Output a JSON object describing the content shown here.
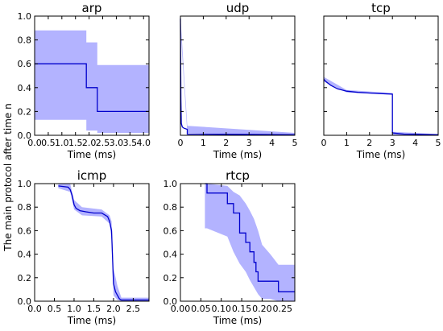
{
  "figure": {
    "ylabel": "The main protocol after time n"
  },
  "colors": {
    "line": "#0000cc",
    "band": "#b3b3ff"
  },
  "chart_data": [
    {
      "type": "line",
      "title": "arp",
      "xlabel": "Time (ms)",
      "xlim": [
        0,
        4.2
      ],
      "ylim": [
        0,
        1.0
      ],
      "xticks": [
        "0.0",
        "0.5",
        "1.0",
        "1.5",
        "2.0",
        "2.5",
        "3.0",
        "3.5",
        "4.0"
      ],
      "yticks": [
        "0.0",
        "0.2",
        "0.4",
        "0.6",
        "0.8",
        "1.0"
      ],
      "x": [
        0,
        1.9,
        1.9,
        2.3,
        2.3,
        4.2
      ],
      "y": [
        0.6,
        0.6,
        0.4,
        0.4,
        0.2,
        0.2
      ],
      "band_x": [
        0,
        1.9,
        1.9,
        2.3,
        2.3,
        4.2
      ],
      "band_upper": [
        0.88,
        0.88,
        0.78,
        0.78,
        0.59,
        0.59
      ],
      "band_lower": [
        0.13,
        0.13,
        0.04,
        0.04,
        0.02,
        0.02
      ]
    },
    {
      "type": "line",
      "title": "udp",
      "xlabel": "Time (ms)",
      "xlim": [
        0,
        5
      ],
      "ylim": [
        0,
        1.0
      ],
      "xticks": [
        "0",
        "1",
        "2",
        "3",
        "4",
        "5"
      ],
      "yticks": [],
      "x": [
        0,
        0.02,
        0.04,
        0.08,
        0.15,
        0.3,
        0.3,
        0.8,
        5
      ],
      "y": [
        0.98,
        0.3,
        0.1,
        0.07,
        0.06,
        0.05,
        0.01,
        0.01,
        0.005
      ],
      "band_x": [
        0,
        0.3,
        5
      ],
      "band_upper": [
        1.0,
        0.08,
        0.02
      ],
      "band_lower": [
        0.9,
        0.02,
        0.0
      ]
    },
    {
      "type": "line",
      "title": "tcp",
      "xlabel": "Time (ms)",
      "xlim": [
        0,
        5
      ],
      "ylim": [
        0,
        1.0
      ],
      "xticks": [
        "0",
        "1",
        "2",
        "3",
        "4",
        "5"
      ],
      "yticks": [],
      "x": [
        0,
        0.1,
        0.3,
        0.6,
        1.0,
        1.5,
        2.0,
        2.5,
        3.0,
        3.0,
        3.5,
        5
      ],
      "y": [
        0.47,
        0.45,
        0.42,
        0.39,
        0.37,
        0.36,
        0.355,
        0.35,
        0.345,
        0.02,
        0.01,
        0.005
      ],
      "band_x": [
        0,
        1.0,
        3.0,
        3.0,
        5
      ],
      "band_upper": [
        0.49,
        0.38,
        0.355,
        0.03,
        0.01
      ],
      "band_lower": [
        0.45,
        0.36,
        0.34,
        0.0,
        0.0
      ]
    },
    {
      "type": "line",
      "title": "icmp",
      "xlabel": "Time (ms)",
      "xlim": [
        0,
        2.9
      ],
      "ylim": [
        0,
        1.0
      ],
      "xticks": [
        "0.0",
        "0.5",
        "1.0",
        "1.5",
        "2.0",
        "2.5"
      ],
      "yticks": [
        "0.0",
        "0.2",
        "0.4",
        "0.6",
        "0.8",
        "1.0"
      ],
      "x": [
        0.6,
        0.85,
        0.9,
        0.95,
        1.0,
        1.05,
        1.15,
        1.3,
        1.5,
        1.7,
        1.8,
        1.85,
        1.9,
        1.95,
        2.0,
        2.05,
        2.1,
        2.15,
        2.2,
        2.9
      ],
      "y": [
        0.98,
        0.97,
        0.95,
        0.9,
        0.82,
        0.79,
        0.77,
        0.76,
        0.75,
        0.75,
        0.73,
        0.72,
        0.68,
        0.6,
        0.15,
        0.08,
        0.05,
        0.02,
        0.01,
        0.01
      ],
      "band_x": [
        0.6,
        0.9,
        1.0,
        1.2,
        1.7,
        1.9,
        1.95,
        2.0,
        2.1,
        2.2,
        2.9
      ],
      "band_upper": [
        1.0,
        1.0,
        0.86,
        0.8,
        0.78,
        0.73,
        0.68,
        0.28,
        0.13,
        0.03,
        0.03
      ],
      "band_lower": [
        0.96,
        0.93,
        0.78,
        0.73,
        0.72,
        0.66,
        0.52,
        0.05,
        0.01,
        0.0,
        0.0
      ]
    },
    {
      "type": "line",
      "title": "rtcp",
      "xlabel": "Time (ms)",
      "xlim": [
        0,
        0.28
      ],
      "ylim": [
        0,
        1.0
      ],
      "xticks": [
        "0.00",
        "0.05",
        "0.10",
        "0.15",
        "0.20",
        "0.25"
      ],
      "yticks": [
        "0.0",
        "0.2",
        "0.4",
        "0.6",
        "0.8",
        "1.0"
      ],
      "x": [
        0.06,
        0.065,
        0.065,
        0.115,
        0.115,
        0.13,
        0.13,
        0.145,
        0.145,
        0.16,
        0.16,
        0.17,
        0.17,
        0.18,
        0.18,
        0.185,
        0.185,
        0.19,
        0.19,
        0.2,
        0.2,
        0.22,
        0.22,
        0.24,
        0.24,
        0.28
      ],
      "y": [
        1.0,
        1.0,
        0.92,
        0.92,
        0.83,
        0.83,
        0.75,
        0.75,
        0.58,
        0.58,
        0.5,
        0.5,
        0.42,
        0.42,
        0.33,
        0.33,
        0.25,
        0.25,
        0.17,
        0.17,
        0.17,
        0.17,
        0.17,
        0.17,
        0.08,
        0.08
      ],
      "band_x": [
        0.06,
        0.065,
        0.115,
        0.13,
        0.145,
        0.16,
        0.17,
        0.18,
        0.19,
        0.2,
        0.22,
        0.24,
        0.28
      ],
      "band_upper": [
        1.0,
        1.0,
        0.98,
        0.93,
        0.9,
        0.83,
        0.77,
        0.7,
        0.6,
        0.48,
        0.4,
        0.31,
        0.31
      ],
      "band_lower": [
        0.62,
        0.62,
        0.55,
        0.42,
        0.32,
        0.25,
        0.18,
        0.12,
        0.06,
        0.02,
        0.02,
        0.0,
        0.0
      ]
    }
  ]
}
